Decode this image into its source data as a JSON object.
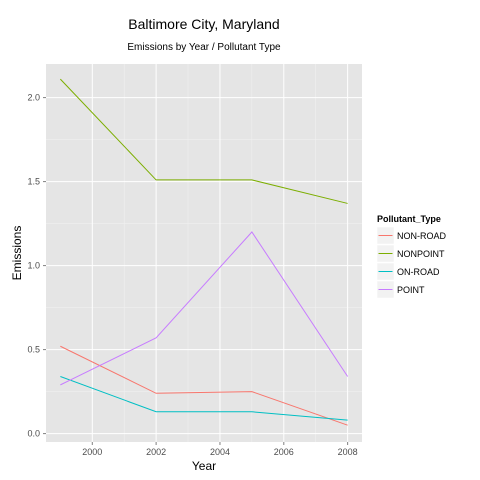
{
  "chart_data": {
    "type": "line",
    "title": "Baltimore City, Maryland",
    "subtitle": "Emissions by Year / Pollutant Type",
    "xlabel": "Year",
    "ylabel": "Emissions",
    "x": [
      1999,
      2002,
      2005,
      2008
    ],
    "xlim": [
      1998.55,
      2008.45
    ],
    "ylim": [
      -0.05,
      2.2
    ],
    "xticks": [
      2000,
      2002,
      2004,
      2006,
      2008
    ],
    "yticks": [
      0.0,
      0.5,
      1.0,
      1.5,
      2.0
    ],
    "ytick_labels": [
      "0.0",
      "0.5",
      "1.0",
      "1.5",
      "2.0"
    ],
    "grid": true,
    "legend": {
      "title": "Pollutant_Type",
      "position": "right"
    },
    "series": [
      {
        "name": "NON-ROAD",
        "color": "#F8766D",
        "values": [
          0.52,
          0.24,
          0.25,
          0.05
        ]
      },
      {
        "name": "NONPOINT",
        "color": "#7CAE00",
        "values": [
          2.11,
          1.51,
          1.51,
          1.37
        ]
      },
      {
        "name": "ON-ROAD",
        "color": "#00BFC4",
        "values": [
          0.34,
          0.13,
          0.13,
          0.08
        ]
      },
      {
        "name": "POINT",
        "color": "#C77CFF",
        "values": [
          0.29,
          0.57,
          1.2,
          0.34
        ]
      }
    ]
  }
}
